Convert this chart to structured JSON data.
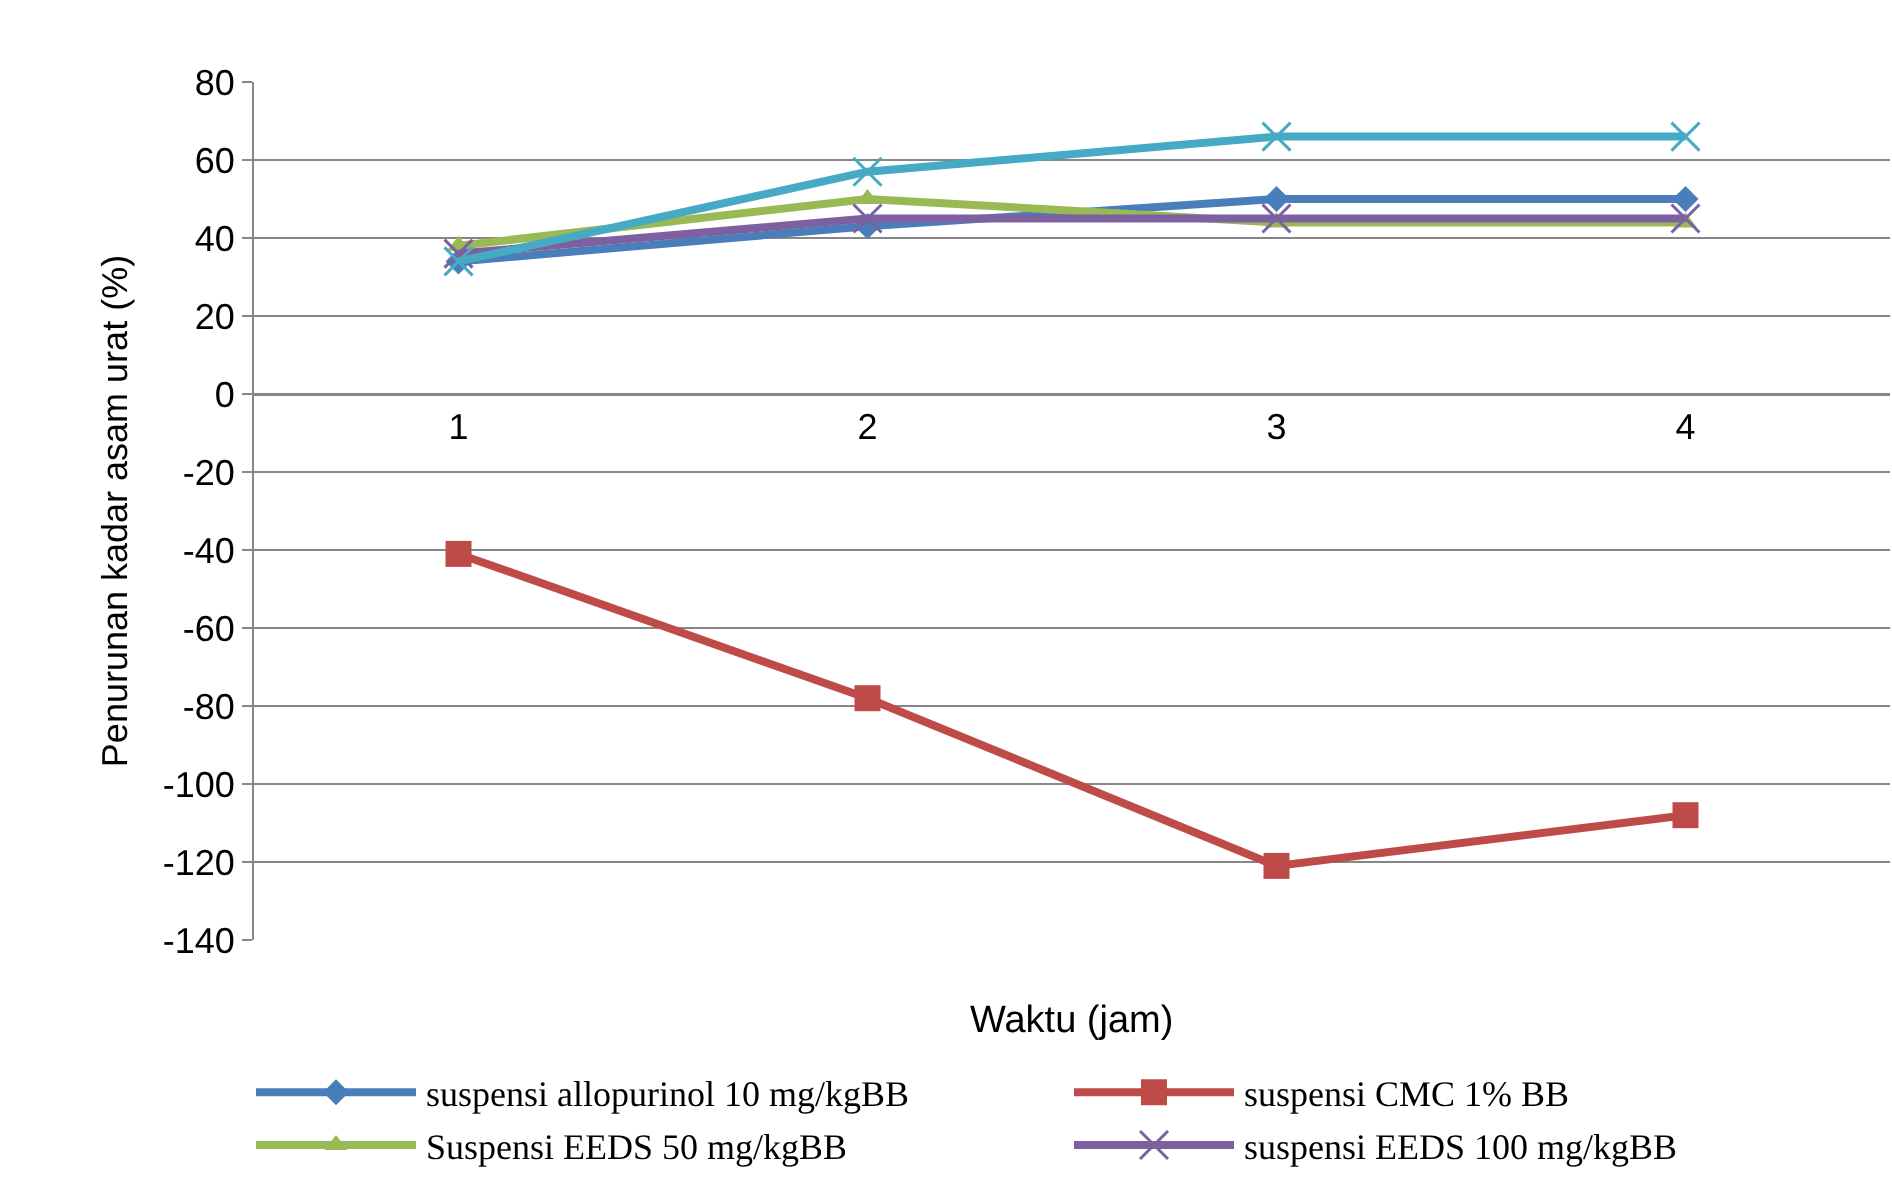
{
  "chart_data": {
    "type": "line",
    "xlabel": "Waktu (jam)",
    "ylabel": "Penurunan kadar asam urat (%)",
    "categories": [
      "1",
      "2",
      "3",
      "4"
    ],
    "ylim": [
      -140,
      80
    ],
    "yticks": [
      -140,
      -120,
      -100,
      -80,
      -60,
      -40,
      -20,
      0,
      20,
      40,
      60,
      80
    ],
    "grid": "y",
    "legend": "bottom",
    "series": [
      {
        "name": "suspensi allopurinol 10 mg/kgBB",
        "color": "#4a7ebb",
        "marker": "diamond",
        "values": [
          34,
          43,
          50,
          50
        ]
      },
      {
        "name": "suspensi CMC 1% BB",
        "color": "#be4b48",
        "marker": "square",
        "values": [
          -41,
          -78,
          -121,
          -108
        ]
      },
      {
        "name": "Suspensi EEDS 50 mg/kgBB",
        "color": "#98b954",
        "marker": "triangle",
        "values": [
          38,
          50,
          44,
          44
        ]
      },
      {
        "name": "suspensi EEDS 100 mg/kgBB",
        "color": "#7d60a0",
        "marker": "cross",
        "values": [
          36,
          45,
          45,
          45
        ]
      },
      {
        "color": "#46aac5",
        "marker": "cross",
        "values": [
          34,
          57,
          66,
          66
        ]
      }
    ]
  }
}
